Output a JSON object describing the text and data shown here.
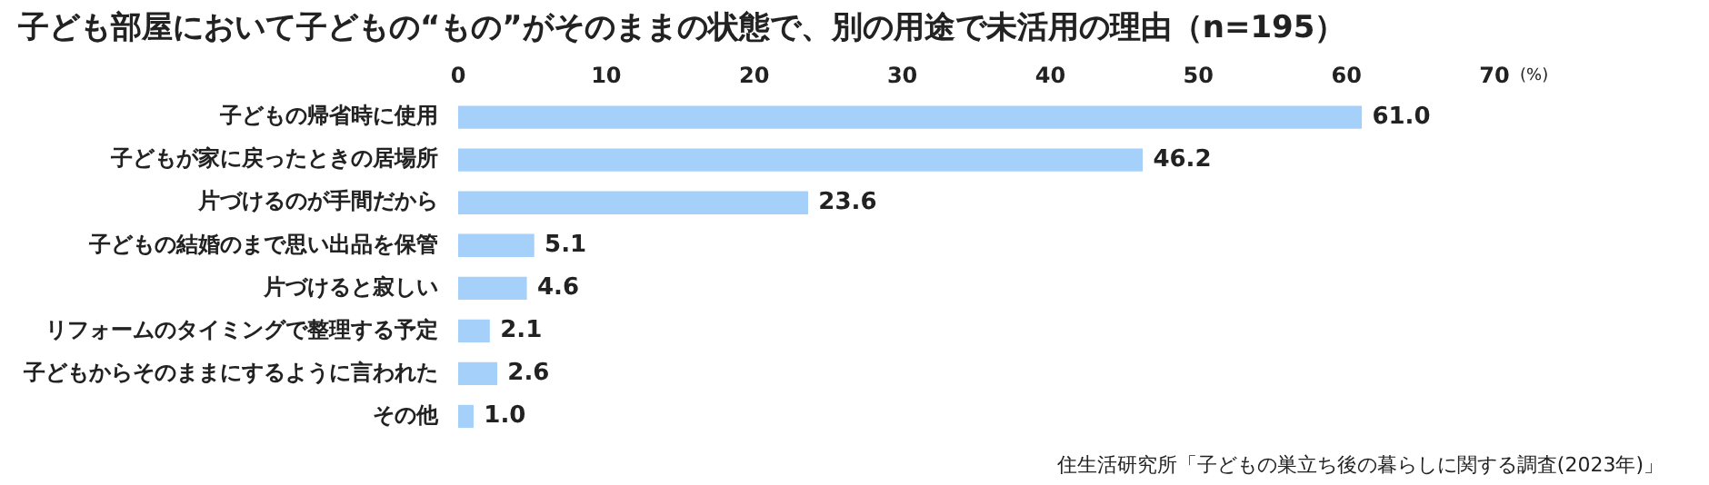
{
  "chart_data": {
    "type": "bar",
    "orientation": "horizontal",
    "title": "子ども部屋において子どもの“もの”がそのままの状態で、別の用途で未活用の理由（n=195）",
    "xlabel": "(%)",
    "categories": [
      "子どもの帰省時に使用",
      "子どもが家に戻ったときの居場所",
      "片づけるのが手間だから",
      "子どもの結婚のまで思い出品を保管",
      "片づけると寂しい",
      "リフォームのタイミングで整理する予定",
      "子どもからそのままにするように言われた",
      "その他"
    ],
    "values": [
      61.0,
      46.2,
      23.6,
      5.1,
      4.6,
      2.1,
      2.6,
      1.0
    ],
    "value_labels": [
      "61.0",
      "46.2",
      "23.6",
      "5.1",
      "4.6",
      "2.1",
      "2.6",
      "1.0"
    ],
    "color": "#a4d0fa",
    "xlim": [
      0,
      70
    ],
    "xticks": [
      0,
      10,
      20,
      30,
      40,
      50,
      60,
      70
    ],
    "grid": false,
    "legend": false,
    "annotations": [
      "住生活研究所「子どもの巣立ち後の暮らしに関する調査(2023年)」"
    ]
  }
}
